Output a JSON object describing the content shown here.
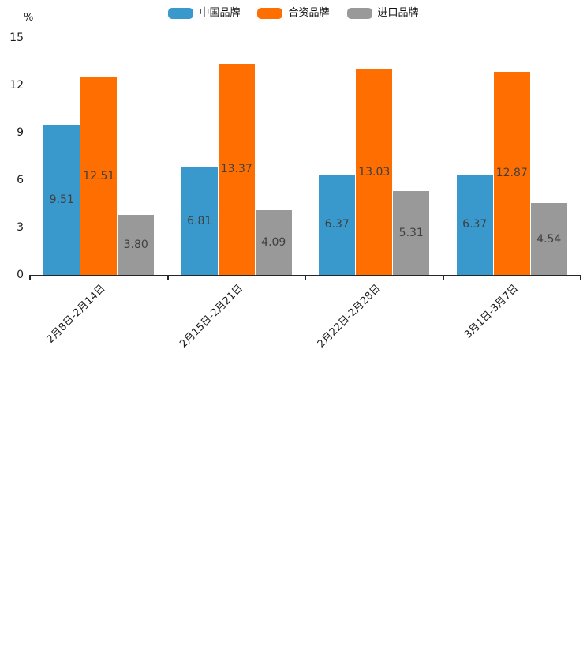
{
  "chart_data": {
    "type": "bar",
    "title": "",
    "ylabel": "%",
    "categories": [
      "2月8日-2月14日",
      "2月15日-2月21日",
      "2月22日-2月28日",
      "3月1日-3月7日"
    ],
    "series": [
      {
        "name": "中国品牌",
        "color": "#3A99CC",
        "values": [
          9.51,
          6.81,
          6.37,
          6.37
        ]
      },
      {
        "name": "合资品牌",
        "color": "#FF6E00",
        "values": [
          12.51,
          13.37,
          13.03,
          12.87
        ]
      },
      {
        "name": "进口品牌",
        "color": "#999999",
        "values": [
          3.8,
          4.09,
          5.31,
          4.54
        ]
      }
    ],
    "yticks": [
      0,
      3,
      6,
      9,
      12,
      15
    ],
    "ylim": [
      0,
      15
    ],
    "grid": false,
    "legend_position": "top",
    "value_label_decimals": 2,
    "colors": {
      "axis": "#262626",
      "tick_label": "#1a1a1a",
      "value_label": "#404040"
    }
  }
}
